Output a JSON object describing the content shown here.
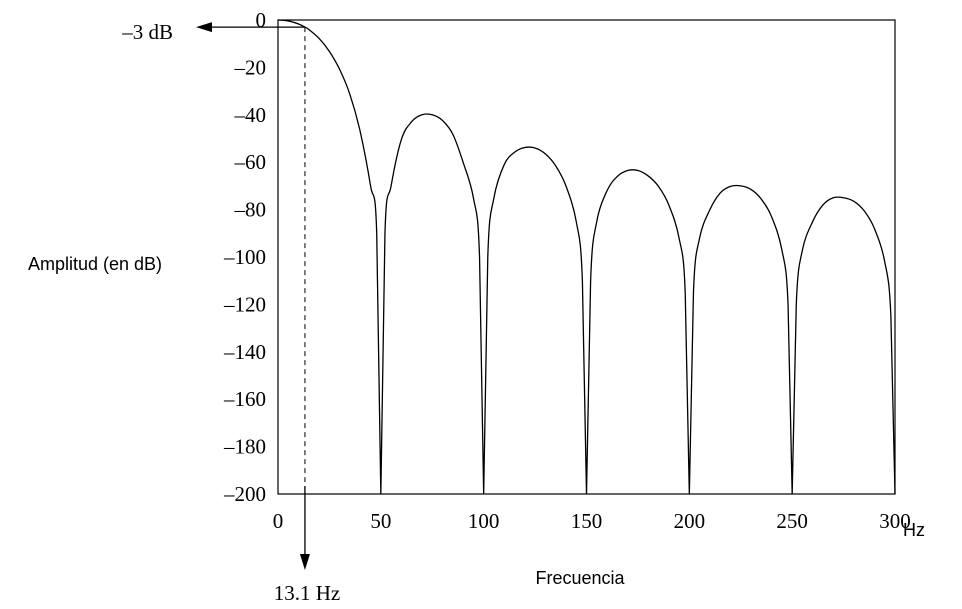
{
  "chart_data": {
    "type": "line",
    "xlabel": "Frecuencia",
    "ylabel": "Amplitud (en dB)",
    "x_unit": "Hz",
    "xlim": [
      0,
      300
    ],
    "ylim": [
      -200,
      0
    ],
    "x_ticks": [
      "0",
      "50",
      "100",
      "150",
      "200",
      "250",
      "300"
    ],
    "y_ticks": [
      "0",
      "–20",
      "–40",
      "–60",
      "–80",
      "–100",
      "–120",
      "–140",
      "–160",
      "–180",
      "–200"
    ],
    "grid": false,
    "legend": "none",
    "series": [
      {
        "x": [
          0,
          5,
          10,
          13.1,
          15,
          20,
          25,
          30,
          35,
          40,
          45,
          48,
          50,
          52,
          55,
          60,
          65,
          70,
          75,
          80,
          85,
          90,
          95,
          98,
          100,
          102,
          105,
          110,
          115,
          120,
          125,
          130,
          135,
          140,
          145,
          148,
          150,
          152,
          155,
          160,
          165,
          170,
          175,
          180,
          185,
          190,
          195,
          198,
          200,
          202,
          205,
          210,
          215,
          220,
          225,
          230,
          235,
          240,
          245,
          248,
          250,
          252,
          255,
          260,
          265,
          270,
          275,
          280,
          285,
          290,
          295,
          298,
          300
        ],
        "y": [
          0,
          -0.4,
          -1.7,
          -3,
          -4,
          -7.8,
          -13.3,
          -20.9,
          -31.5,
          -47.2,
          -70,
          -90,
          -200,
          -90,
          -70,
          -50.4,
          -42.9,
          -40.0,
          -40.0,
          -42.4,
          -48.2,
          -60,
          -75,
          -100,
          -200,
          -100,
          -75,
          -61,
          -55.8,
          -53.8,
          -54.0,
          -56.5,
          -61.5,
          -70,
          -85,
          -110,
          -200,
          -110,
          -85,
          -72,
          -66,
          -63.5,
          -63.5,
          -65.8,
          -70.2,
          -78,
          -92,
          -115,
          -200,
          -115,
          -92,
          -80,
          -73,
          -70.2,
          -70.0,
          -71.5,
          -75.6,
          -83,
          -97,
          -120,
          -200,
          -120,
          -97,
          -85,
          -78,
          -75,
          -75.0,
          -76.5,
          -80.5,
          -88,
          -102,
          -125,
          -200
        ]
      }
    ]
  },
  "annotations": {
    "minus3db_label": "–3 dB",
    "cutoff_label": "13.1 Hz",
    "cutoff_x": 13.1,
    "cutoff_y": -3
  }
}
